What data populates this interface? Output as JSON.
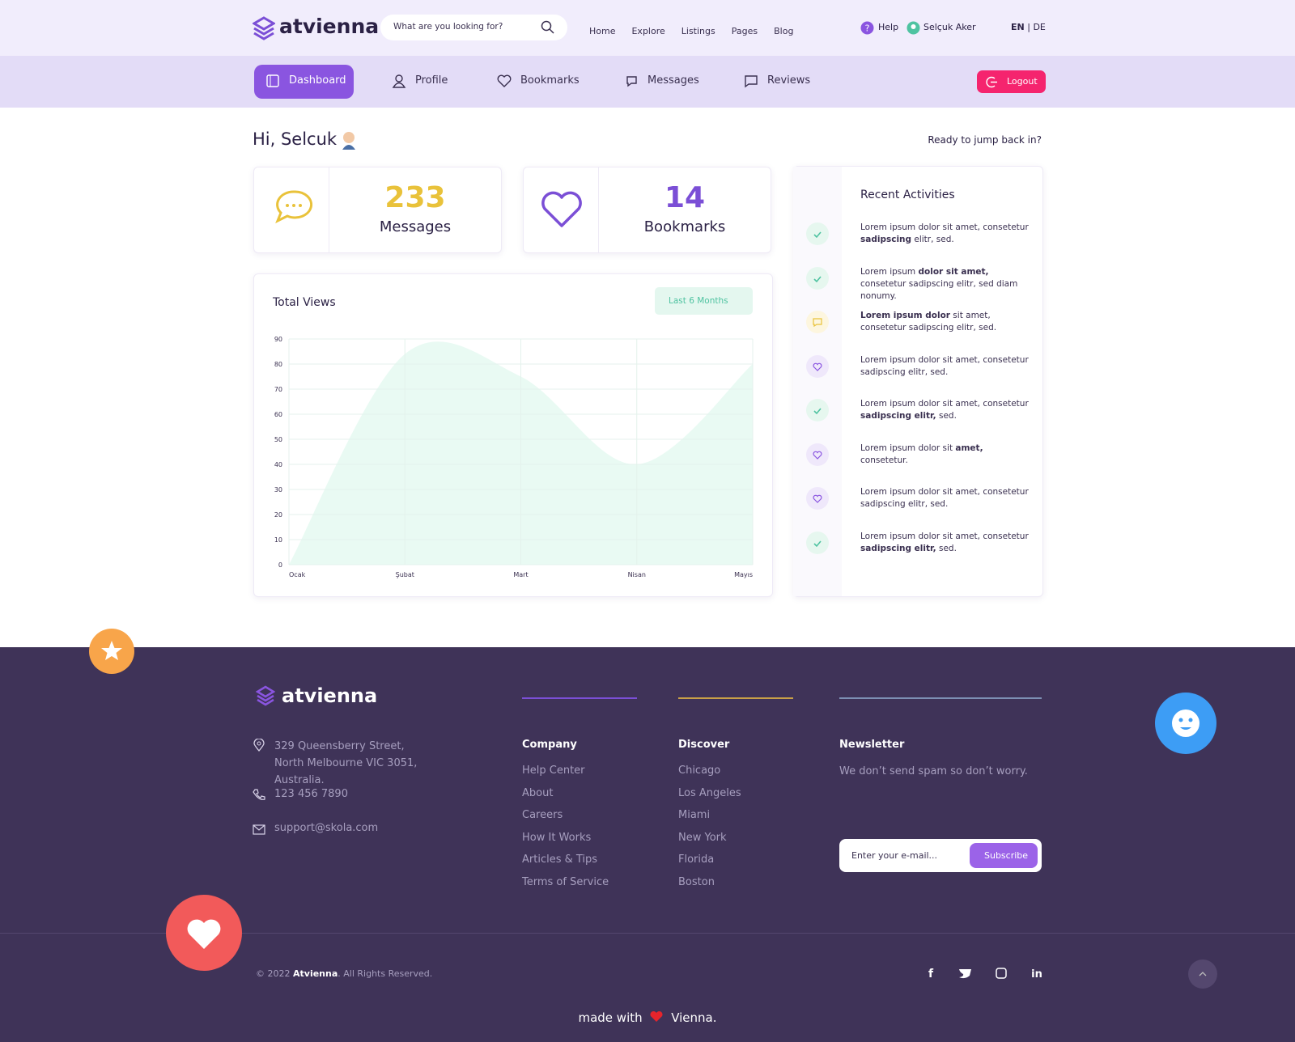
{
  "header": {
    "logo": "atvienna",
    "search_placeholder": "What are you looking for?",
    "menu": [
      "Home",
      "Explore",
      "Listings",
      "Pages",
      "Blog"
    ],
    "help": "Help",
    "user": "Selçuk Aker",
    "lang_active": "EN",
    "lang_other": "DE"
  },
  "nav": {
    "items": [
      "Dashboard",
      "Profile",
      "Bookmarks",
      "Messages",
      "Reviews"
    ],
    "logout": "Logout"
  },
  "greeting": "Hi, Selcuk",
  "ready": "Ready to jump back in?",
  "stats": [
    {
      "value": "233",
      "label": "Messages"
    },
    {
      "value": "14",
      "label": "Bookmarks"
    }
  ],
  "chart_data": {
    "type": "area",
    "title": "Total Views",
    "period": "Last 6 Months",
    "categories": [
      "Ocak",
      "Şubat",
      "Mart",
      "Nisan",
      "Mayıs"
    ],
    "values": [
      0,
      84,
      75,
      40,
      80
    ],
    "color": "#e9faf3",
    "ylim": [
      0,
      90
    ],
    "yticks": [
      0,
      10,
      20,
      30,
      40,
      50,
      60,
      70,
      80,
      90
    ],
    "grid": true
  },
  "activities": {
    "title": "Recent Activities",
    "items": [
      {
        "icon": "check",
        "text": [
          "Lorem ipsum dolor sit amet, consetetur ",
          "sadipscing",
          " elitr, sed."
        ]
      },
      {
        "icon": "check",
        "text": [
          "Lorem ipsum ",
          "dolor sit amet,",
          " consetetur sadipscing elitr, sed diam nonumy."
        ]
      },
      {
        "icon": "message",
        "text": [
          "",
          "Lorem ipsum dolor",
          " sit amet, consetetur sadipscing elitr, sed."
        ]
      },
      {
        "icon": "heart",
        "text": [
          "Lorem ipsum dolor sit amet, consetetur sadipscing elitr, sed."
        ]
      },
      {
        "icon": "check",
        "text": [
          "Lorem ipsum dolor sit amet, consetetur ",
          "sadipscing elitr,",
          " sed."
        ]
      },
      {
        "icon": "heart",
        "text": [
          "Lorem ipsum dolor sit ",
          "amet,",
          " consetetur."
        ]
      },
      {
        "icon": "heart",
        "text": [
          "Lorem ipsum dolor sit amet, consetetur sadipscing elitr, sed."
        ]
      },
      {
        "icon": "check",
        "text": [
          "Lorem ipsum dolor sit amet, consetetur ",
          "sadipscing elitr,",
          " sed."
        ]
      }
    ]
  },
  "footer": {
    "logo": "atvienna",
    "address": "329 Queensberry Street, North Melbourne VIC 3051, Australia.",
    "phone": "123 456 7890",
    "email": "support@skola.com",
    "columns": [
      {
        "title": "Company",
        "links": [
          "Help Center",
          "About",
          "Careers",
          "How It Works",
          "Articles & Tips",
          "Terms of Service"
        ]
      },
      {
        "title": "Discover",
        "links": [
          "Chicago",
          "Los Angeles",
          "Miami",
          "New York",
          "Florida",
          "Boston"
        ]
      }
    ],
    "newsletter": {
      "title": "Newsletter",
      "text": "We don’t send spam so don’t worry.",
      "placeholder": "Enter your e-mail...",
      "button": "Subscribe"
    },
    "copyright": [
      "© 2022 ",
      "Atvienna",
      ". All Rights Reserved."
    ],
    "made_with": [
      "made with",
      "Vienna."
    ]
  }
}
